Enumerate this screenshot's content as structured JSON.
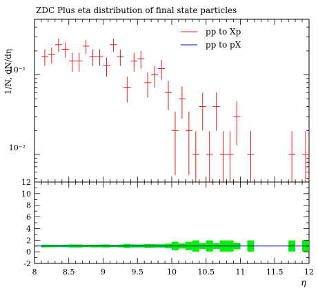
{
  "chart_data": {
    "type": "scatter",
    "title": "ZDC Plus eta distribution of final state particles",
    "ylabel": "1/N, dN/dη",
    "xlabel": "η",
    "xlim": [
      8,
      12
    ],
    "x_tick_labels": [
      "8",
      "8.5",
      "9",
      "9.5",
      "10",
      "10.5",
      "11",
      "11.5",
      "12"
    ],
    "main_panel": {
      "yscale": "log",
      "ylim": [
        0.0045,
        0.5
      ],
      "y_tick_labels": [
        "10⁻¹",
        "10⁻²"
      ]
    },
    "ratio_panel": {
      "ylim": [
        -2,
        12
      ],
      "y_tick_labels": [
        "12",
        "10",
        "8",
        "6",
        "4",
        "2",
        "0",
        "-2"
      ]
    },
    "legend": {
      "position": "top-right"
    },
    "colors": {
      "data": "#e41a1c",
      "mc": "#0000cc",
      "band": "#00ee00"
    },
    "series": [
      {
        "name": "pp to Xp",
        "x": [
          8.15,
          8.25,
          8.35,
          8.45,
          8.55,
          8.65,
          8.75,
          8.85,
          8.95,
          9.05,
          9.15,
          9.25,
          9.35,
          9.45,
          9.55,
          9.65,
          9.75,
          9.85,
          9.95,
          10.05,
          10.15,
          10.25,
          10.35,
          10.45,
          10.55,
          10.65,
          10.75,
          10.85,
          10.95,
          11.15,
          11.75,
          11.95
        ],
        "y": [
          0.17,
          0.18,
          0.24,
          0.21,
          0.15,
          0.15,
          0.23,
          0.17,
          0.17,
          0.13,
          0.24,
          0.17,
          0.07,
          0.15,
          0.16,
          0.08,
          0.1,
          0.12,
          0.06,
          0.02,
          0.05,
          0.02,
          0.01,
          0.04,
          0.01,
          0.04,
          0.01,
          0.01,
          0.03,
          0.01,
          0.01,
          0.01
        ],
        "err": [
          0.04,
          0.04,
          0.045,
          0.045,
          0.04,
          0.04,
          0.045,
          0.04,
          0.04,
          0.035,
          0.045,
          0.04,
          0.025,
          0.04,
          0.04,
          0.028,
          0.03,
          0.034,
          0.024,
          0.0145,
          0.022,
          0.0145,
          0.0096,
          0.02,
          0.0096,
          0.02,
          0.0096,
          0.0096,
          0.017,
          0.0096,
          0.0096,
          0.0096
        ]
      },
      {
        "name": "pp to pX",
        "y": []
      }
    ]
  }
}
